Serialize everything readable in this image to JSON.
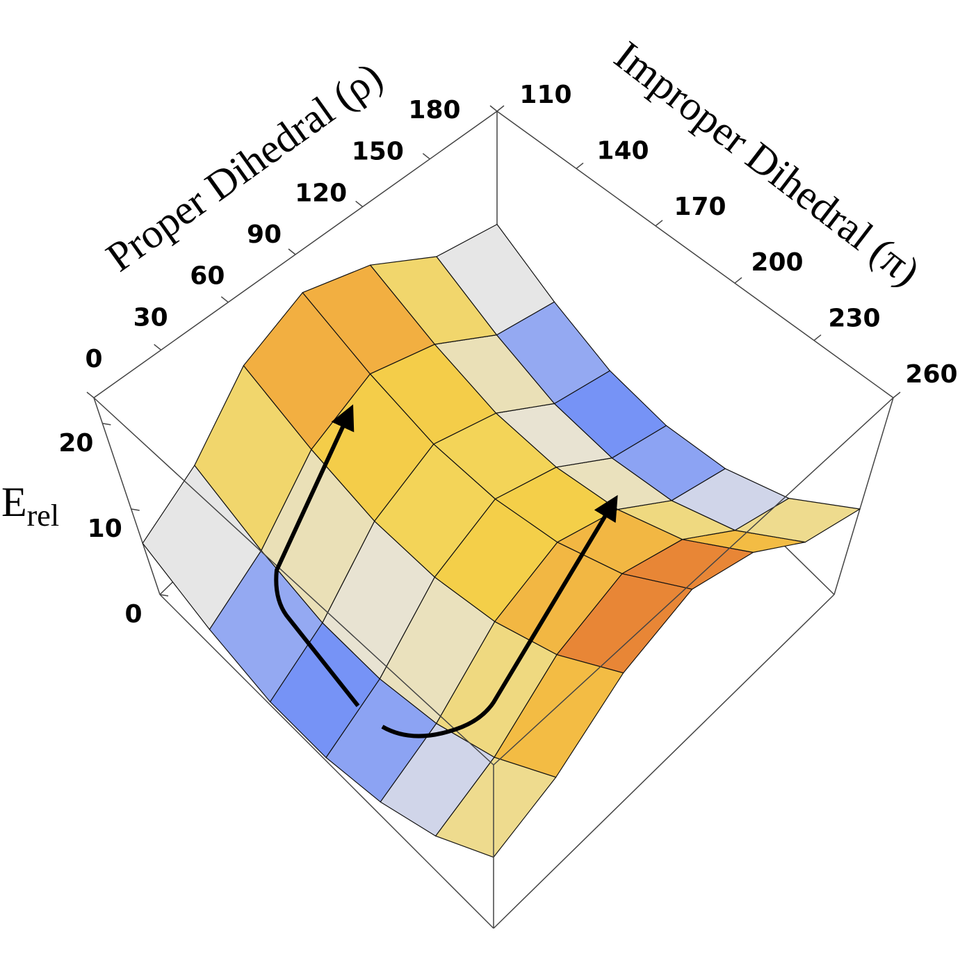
{
  "chart_data": {
    "type": "surface",
    "x_label": "Proper Dihedral (ρ)",
    "y_label": "Improper Dihedral (π)",
    "z_label": {
      "main": "E",
      "sub": "rel"
    },
    "x": [
      0,
      30,
      60,
      90,
      120,
      150,
      180
    ],
    "y": [
      110,
      135,
      160,
      185,
      210,
      235,
      260
    ],
    "z": [
      [
        6,
        9,
        15,
        18,
        15,
        9,
        6
      ],
      [
        2.5,
        5.5,
        11.5,
        14.5,
        11.5,
        5.5,
        2.5
      ],
      [
        0.5,
        3.5,
        9.5,
        12.5,
        9.5,
        3.5,
        0.5
      ],
      [
        0.5,
        3.5,
        9.5,
        12.5,
        9.5,
        3.5,
        0.5
      ],
      [
        2,
        5,
        11,
        14,
        11,
        5,
        2
      ],
      [
        5,
        8,
        14,
        17,
        14,
        8,
        5
      ],
      [
        10,
        13,
        19,
        22,
        19,
        13,
        10
      ]
    ],
    "xlim": [
      0,
      180
    ],
    "xticks": [
      0,
      30,
      60,
      90,
      120,
      150,
      180
    ],
    "ylim": [
      110,
      260
    ],
    "yticks": [
      110,
      140,
      170,
      200,
      230,
      260
    ],
    "zlim": [
      0,
      23
    ],
    "zticks": [
      0,
      10,
      20
    ],
    "colormap": [
      "#3a66ff",
      "#e6e6e6",
      "#f4d24a",
      "#f0943a",
      "#b3261a"
    ],
    "mesh_color": "#111111"
  }
}
